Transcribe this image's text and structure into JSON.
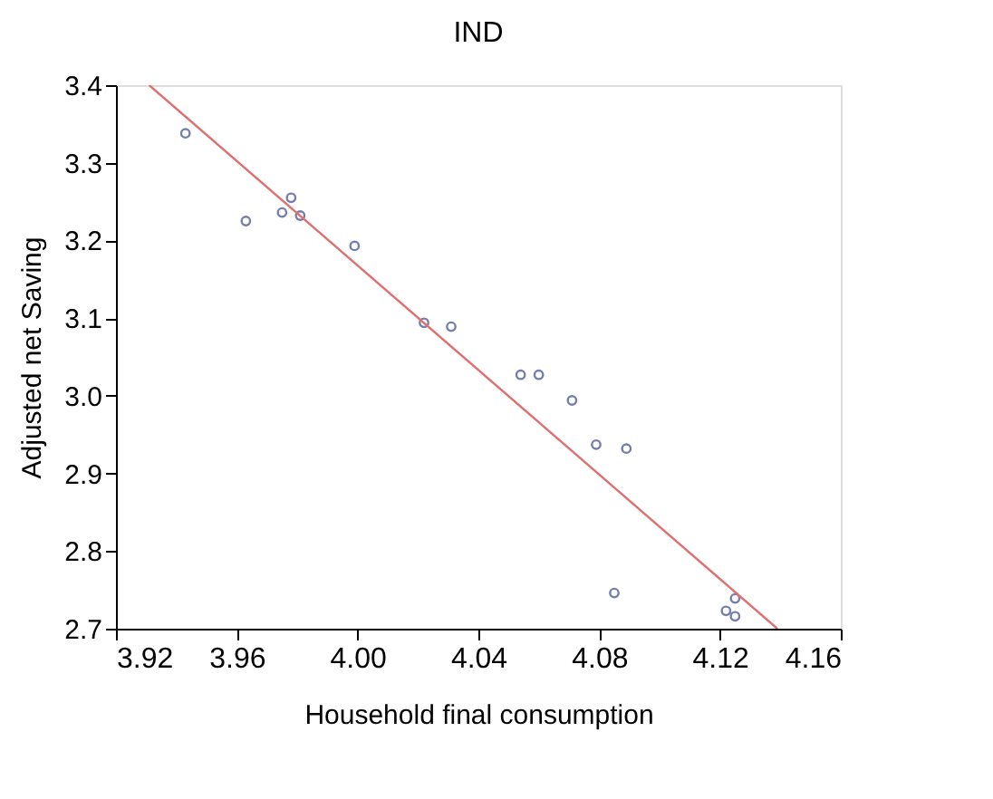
{
  "chart_data": {
    "type": "scatter",
    "title": "IND",
    "xlabel": "Household final consumption",
    "ylabel": "Adjusted net Saving",
    "xlim": [
      3.92,
      4.16
    ],
    "xticks": [
      {
        "value": 3.92,
        "label": "3.92"
      },
      {
        "value": 3.96,
        "label": "3.96"
      },
      {
        "value": 4.0,
        "label": "4.00"
      },
      {
        "value": 4.04,
        "label": "4.04"
      },
      {
        "value": 4.08,
        "label": "4.08"
      },
      {
        "value": 4.12,
        "label": "4.12"
      },
      {
        "value": 4.16,
        "label": "4.16"
      }
    ],
    "ylim": [
      2.7,
      3.4
    ],
    "yticks": [
      {
        "value": 2.7,
        "label": "2.7"
      },
      {
        "value": 2.8,
        "label": "2.8"
      },
      {
        "value": 2.9,
        "label": "2.9"
      },
      {
        "value": 3.0,
        "label": "3.0"
      },
      {
        "value": 3.1,
        "label": "3.1"
      },
      {
        "value": 3.2,
        "label": "3.2"
      },
      {
        "value": 3.3,
        "label": "3.3"
      },
      {
        "value": 3.4,
        "label": "3.4"
      }
    ],
    "grid": false,
    "marker": "circle",
    "series": [
      {
        "color": "#3a4a8a",
        "x": [
          3.943,
          3.963,
          3.975,
          3.978,
          3.981,
          3.999,
          4.022,
          4.031,
          4.054,
          4.06,
          4.071,
          4.079,
          4.089,
          4.085,
          4.122,
          4.125,
          4.125
        ],
        "values": [
          3.338,
          3.225,
          3.236,
          3.255,
          3.232,
          3.193,
          3.094,
          3.089,
          3.027,
          3.027,
          2.994,
          2.937,
          2.932,
          2.746,
          2.723,
          2.716,
          2.739
        ]
      },
      {
        "type": "line",
        "marker": "none",
        "color": "#e07070",
        "line_style": "solid",
        "x": [
          3.931,
          4.139
        ],
        "values": [
          3.4,
          2.7
        ]
      }
    ]
  }
}
